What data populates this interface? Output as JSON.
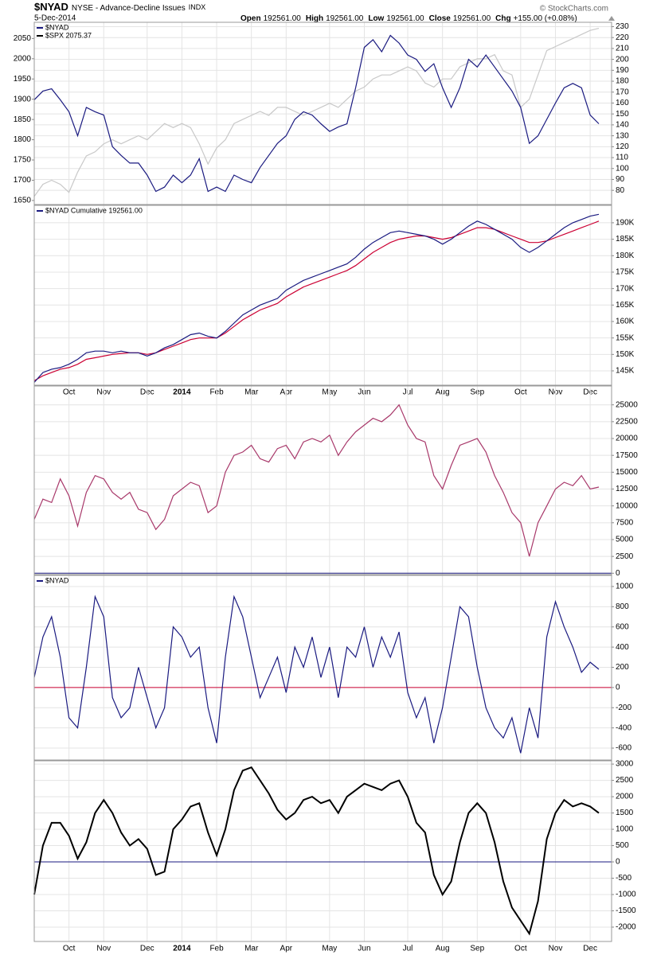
{
  "header": {
    "symbol": "$NYAD",
    "name": "NYSE - Advance-Decline Issues",
    "kind": "INDX",
    "date": "5-Dec-2014",
    "quote": [
      {
        "label": "Open",
        "value": "192561.00"
      },
      {
        "label": "High",
        "value": "192561.00"
      },
      {
        "label": "Low",
        "value": "192561.00"
      },
      {
        "label": "Close",
        "value": "192561.00"
      },
      {
        "label": "Chg",
        "value": "+155.00 (+0.08%)"
      }
    ],
    "copyright": "© StockCharts.com"
  },
  "chart_data": [
    {
      "type": "line",
      "ylim": [
        1640,
        2090
      ],
      "yticks": [
        1650,
        1700,
        1750,
        1800,
        1850,
        1900,
        1950,
        2000,
        2050
      ],
      "y2lim": [
        67,
        234
      ],
      "y2ticks": [
        80,
        90,
        100,
        110,
        120,
        130,
        140,
        150,
        160,
        170,
        180,
        190,
        200,
        210,
        220,
        230
      ],
      "grid": true,
      "series": [
        {
          "name": "$NYAD",
          "color": "#1a1a80",
          "axis": "y2",
          "values": [
            163,
            171,
            173,
            163,
            152,
            130,
            156,
            152,
            149,
            120,
            112,
            105,
            105,
            94,
            79,
            83,
            94,
            87,
            94,
            109,
            79,
            83,
            79,
            94,
            90,
            87,
            101,
            112,
            123,
            130,
            145,
            152,
            149,
            141,
            134,
            138,
            141,
            174,
            211,
            218,
            207,
            222,
            215,
            204,
            200,
            189,
            196,
            174,
            156,
            174,
            200,
            193,
            204,
            193,
            182,
            171,
            156,
            123,
            130,
            145,
            160,
            174,
            178,
            174,
            149,
            141
          ]
        },
        {
          "name": "$SPX 2075.37",
          "color": "#c8c8c8",
          "values": [
            1660,
            1690,
            1700,
            1690,
            1670,
            1720,
            1760,
            1770,
            1790,
            1800,
            1790,
            1800,
            1810,
            1800,
            1820,
            1840,
            1830,
            1840,
            1830,
            1790,
            1740,
            1780,
            1800,
            1840,
            1850,
            1860,
            1870,
            1860,
            1880,
            1880,
            1870,
            1860,
            1870,
            1880,
            1890,
            1880,
            1900,
            1920,
            1930,
            1950,
            1960,
            1960,
            1970,
            1980,
            1970,
            1940,
            1930,
            1950,
            1950,
            1980,
            1990,
            2000,
            2000,
            2010,
            1970,
            1960,
            1880,
            1900,
            1960,
            2020,
            2030,
            2040,
            2050,
            2060,
            2070,
            2075
          ]
        }
      ]
    },
    {
      "type": "line",
      "ylim": [
        140650,
        195300
      ],
      "grid": true,
      "yticks": [
        {
          "value": 145000,
          "label": "145K"
        },
        {
          "value": 150000,
          "label": "150K"
        },
        {
          "value": 155000,
          "label": "155K"
        },
        {
          "value": 160000,
          "label": "160K"
        },
        {
          "value": 165000,
          "label": "165K"
        },
        {
          "value": 170000,
          "label": "170K"
        },
        {
          "value": 175000,
          "label": "175K"
        },
        {
          "value": 180000,
          "label": "180K"
        },
        {
          "value": 185000,
          "label": "185K"
        },
        {
          "value": 190000,
          "label": "190K"
        }
      ],
      "categories": [
        null,
        null,
        null,
        null,
        "Oct",
        null,
        null,
        null,
        "Nov",
        null,
        null,
        null,
        null,
        "Dec",
        null,
        null,
        null,
        "2014",
        null,
        null,
        null,
        "Feb",
        null,
        null,
        null,
        "Mar",
        null,
        null,
        null,
        "Apr",
        null,
        null,
        null,
        null,
        "May",
        null,
        null,
        null,
        "Jun",
        null,
        null,
        null,
        null,
        "Jul",
        null,
        null,
        null,
        "Aug",
        null,
        null,
        null,
        "Sep",
        null,
        null,
        null,
        null,
        "Oct",
        null,
        null,
        null,
        "Nov",
        null,
        null,
        null,
        "Dec",
        null
      ],
      "series": [
        {
          "name": "$NYAD Cumulative 192561.00",
          "color": "#1a1a80",
          "values": [
            141500,
            144500,
            145500,
            146000,
            147000,
            148500,
            150500,
            151000,
            151000,
            150500,
            151000,
            150500,
            150500,
            149500,
            150500,
            152000,
            153000,
            154500,
            156000,
            156500,
            155500,
            155000,
            157000,
            159500,
            162000,
            163500,
            165000,
            166000,
            167000,
            169500,
            171000,
            172500,
            173500,
            174500,
            175500,
            176500,
            177500,
            179500,
            182000,
            184000,
            185500,
            187000,
            187500,
            187000,
            186500,
            186000,
            185000,
            183500,
            185000,
            187000,
            189000,
            190500,
            189500,
            188000,
            186500,
            185000,
            182500,
            181000,
            182500,
            184500,
            186500,
            188500,
            190000,
            191000,
            192000,
            192561
          ]
        },
        {
          "color": "#cc0033",
          "values": [
            142000,
            143500,
            144500,
            145500,
            146000,
            147000,
            148500,
            149000,
            149500,
            150000,
            150300,
            150500,
            150500,
            150000,
            150500,
            151500,
            152500,
            153500,
            154500,
            155000,
            155000,
            155000,
            156500,
            158500,
            160500,
            162000,
            163500,
            164500,
            165500,
            167500,
            169000,
            170500,
            171500,
            172500,
            173500,
            174500,
            175500,
            177000,
            179000,
            181000,
            182500,
            184000,
            185000,
            185500,
            186000,
            186000,
            185500,
            185000,
            185500,
            186500,
            187500,
            188500,
            188500,
            188000,
            187000,
            186000,
            185000,
            184000,
            184000,
            184500,
            185500,
            186500,
            187500,
            188500,
            189500,
            190500
          ]
        }
      ]
    },
    {
      "type": "line",
      "ylim": [
        -200,
        27800
      ],
      "grid": true,
      "refline": {
        "value": 0,
        "color": "#1a1a80"
      },
      "yticks": [
        0,
        2500,
        5000,
        7500,
        10000,
        12500,
        15000,
        17500,
        20000,
        22500,
        25000
      ],
      "series": [
        {
          "color": "#a8386a",
          "values": [
            8000,
            11000,
            10500,
            14000,
            11500,
            7000,
            12000,
            14500,
            14000,
            12000,
            11000,
            12000,
            9500,
            9000,
            6500,
            8000,
            11500,
            12500,
            13500,
            13000,
            9000,
            10000,
            15000,
            17500,
            18000,
            19000,
            17000,
            16500,
            18500,
            19000,
            17000,
            19500,
            20000,
            19500,
            20500,
            17500,
            19500,
            21000,
            22000,
            23000,
            22500,
            23500,
            25000,
            22000,
            20000,
            19500,
            14500,
            12500,
            16000,
            19000,
            19500,
            20000,
            18000,
            14500,
            12000,
            9000,
            7500,
            2500,
            7500,
            10000,
            12500,
            13500,
            13000,
            14500,
            12500,
            12800
          ]
        }
      ]
    },
    {
      "type": "line",
      "ylim": [
        -718,
        1110
      ],
      "grid": true,
      "refline": {
        "value": 0,
        "color": "#cc0033"
      },
      "yticks": [
        -600,
        -400,
        -200,
        0,
        200,
        400,
        600,
        800,
        1000
      ],
      "series": [
        {
          "name": "$NYAD",
          "color": "#1a1a80",
          "values": [
            100,
            500,
            700,
            300,
            -300,
            -400,
            200,
            900,
            700,
            -100,
            -300,
            -200,
            200,
            -100,
            -400,
            -200,
            600,
            500,
            300,
            400,
            -200,
            -550,
            300,
            900,
            700,
            300,
            -100,
            100,
            300,
            -50,
            400,
            200,
            500,
            100,
            400,
            -100,
            400,
            300,
            600,
            200,
            500,
            300,
            550,
            -50,
            -300,
            -100,
            -550,
            -200,
            300,
            800,
            700,
            200,
            -200,
            -400,
            -500,
            -300,
            -650,
            -200,
            -500,
            500,
            850,
            600,
            400,
            150,
            250,
            180
          ]
        }
      ]
    },
    {
      "type": "line",
      "ylim": [
        -2440,
        3100
      ],
      "grid": true,
      "refline": {
        "value": 0,
        "color": "#1a1a80"
      },
      "yticks": [
        -2000,
        -1500,
        -1000,
        -500,
        0,
        500,
        1000,
        1500,
        2000,
        2500,
        3000
      ],
      "categories": [
        null,
        null,
        null,
        null,
        "Oct",
        null,
        null,
        null,
        "Nov",
        null,
        null,
        null,
        null,
        "Dec",
        null,
        null,
        null,
        "2014",
        null,
        null,
        null,
        "Feb",
        null,
        null,
        null,
        "Mar",
        null,
        null,
        null,
        "Apr",
        null,
        null,
        null,
        null,
        "May",
        null,
        null,
        null,
        "Jun",
        null,
        null,
        null,
        null,
        "Jul",
        null,
        null,
        null,
        "Aug",
        null,
        null,
        null,
        "Sep",
        null,
        null,
        null,
        null,
        "Oct",
        null,
        null,
        null,
        "Nov",
        null,
        null,
        null,
        "Dec",
        null
      ],
      "series": [
        {
          "color": "#000000",
          "values": [
            -1000,
            500,
            1200,
            1200,
            800,
            100,
            600,
            1500,
            1900,
            1500,
            900,
            500,
            700,
            400,
            -400,
            -300,
            1000,
            1300,
            1700,
            1800,
            900,
            200,
            1000,
            2200,
            2800,
            2900,
            2500,
            2100,
            1600,
            1300,
            1500,
            1900,
            2000,
            1800,
            1900,
            1500,
            2000,
            2200,
            2400,
            2300,
            2200,
            2400,
            2500,
            2000,
            1200,
            900,
            -400,
            -1000,
            -600,
            600,
            1500,
            1800,
            1500,
            600,
            -600,
            -1400,
            -1800,
            -2200,
            -1200,
            700,
            1500,
            1900,
            1700,
            1800,
            1700,
            1500
          ]
        }
      ]
    }
  ]
}
